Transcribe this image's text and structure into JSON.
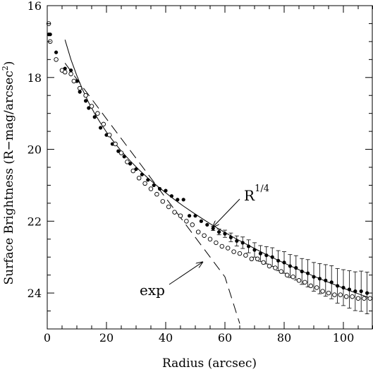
{
  "chart_data": {
    "type": "scatter",
    "xlabel": "Radius (arcsec)",
    "ylabel_parts": [
      "Surface Brightness (R−mag/arcsec",
      "2",
      ")"
    ],
    "xlim": [
      0,
      110
    ],
    "ylim": [
      25,
      16
    ],
    "y_inverted": true,
    "x_ticks": [
      0,
      20,
      40,
      60,
      80,
      100
    ],
    "y_ticks": [
      16,
      18,
      20,
      22,
      24
    ],
    "x_minor_step": 5,
    "y_minor_step": 0.5,
    "grid": false,
    "annotations": [
      {
        "text": "R",
        "sup": "1/4",
        "arrow_to": [
          55,
          22.2
        ]
      },
      {
        "text": "exp",
        "arrow_to": [
          51,
          23.1
        ]
      }
    ],
    "series": [
      {
        "marker": "filled-circle",
        "x": [
          0.5,
          1,
          3,
          5,
          6,
          8,
          10,
          11,
          13,
          14,
          16,
          18,
          20,
          22,
          24,
          26,
          28,
          30,
          32,
          34,
          36,
          38,
          40,
          42,
          44,
          46,
          48,
          50,
          52,
          54,
          56,
          58,
          60,
          62,
          64,
          66,
          68,
          70,
          72,
          74,
          76,
          78,
          80,
          82,
          84,
          86,
          88,
          90,
          92,
          94,
          96,
          98,
          100,
          102,
          104,
          106,
          108
        ],
        "y": [
          16.8,
          16.8,
          17.3,
          17.8,
          17.75,
          17.8,
          18.1,
          18.4,
          18.65,
          18.85,
          19.1,
          19.4,
          19.6,
          19.85,
          20.05,
          20.2,
          20.4,
          20.55,
          20.7,
          20.85,
          21.0,
          21.1,
          21.15,
          21.3,
          21.4,
          21.4,
          21.85,
          21.85,
          22.0,
          22.1,
          22.2,
          22.3,
          22.35,
          22.45,
          22.55,
          22.6,
          22.7,
          22.8,
          22.9,
          22.95,
          23.0,
          23.1,
          23.15,
          23.25,
          23.3,
          23.4,
          23.45,
          23.55,
          23.6,
          23.65,
          23.7,
          23.8,
          23.85,
          23.9,
          23.95,
          23.95,
          24.0
        ],
        "err": [
          0,
          0,
          0,
          0,
          0,
          0,
          0,
          0,
          0,
          0,
          0,
          0,
          0,
          0,
          0,
          0,
          0,
          0,
          0,
          0,
          0,
          0,
          0,
          0,
          0,
          0,
          0,
          0,
          0,
          0,
          0.06,
          0.08,
          0.1,
          0.12,
          0.14,
          0.16,
          0.18,
          0.2,
          0.22,
          0.24,
          0.26,
          0.28,
          0.3,
          0.32,
          0.34,
          0.36,
          0.38,
          0.4,
          0.42,
          0.44,
          0.46,
          0.48,
          0.5,
          0.52,
          0.54,
          0.56,
          0.58
        ]
      },
      {
        "marker": "open-circle",
        "x": [
          0.5,
          1,
          3,
          5,
          6,
          8,
          9,
          11,
          13,
          15,
          17,
          19,
          21,
          23,
          25,
          27,
          29,
          31,
          33,
          35,
          37,
          39,
          41,
          43,
          45,
          47,
          49,
          51,
          53,
          55,
          57,
          59,
          61,
          63,
          65,
          67,
          69,
          71,
          73,
          75,
          77,
          79,
          81,
          83,
          85,
          87,
          89,
          91,
          93,
          95,
          97,
          99,
          101,
          103,
          105,
          107,
          109
        ],
        "y": [
          16.5,
          17.0,
          17.5,
          17.8,
          17.85,
          17.9,
          18.1,
          18.3,
          18.5,
          18.8,
          19.0,
          19.3,
          19.6,
          19.85,
          20.1,
          20.35,
          20.6,
          20.8,
          20.95,
          21.1,
          21.25,
          21.45,
          21.6,
          21.75,
          21.85,
          22.0,
          22.1,
          22.3,
          22.4,
          22.5,
          22.6,
          22.7,
          22.75,
          22.85,
          22.9,
          22.95,
          23.05,
          23.05,
          23.15,
          23.25,
          23.3,
          23.4,
          23.5,
          23.55,
          23.65,
          23.7,
          23.8,
          23.85,
          23.95,
          24.0,
          24.05,
          24.05,
          24.1,
          24.1,
          24.15,
          24.15,
          24.15
        ]
      },
      {
        "style": "solid-line",
        "x": [
          6,
          8,
          10,
          12,
          14,
          16,
          18,
          20,
          22,
          25,
          28,
          31,
          34,
          37,
          40,
          43,
          46,
          49,
          52,
          55,
          58,
          61,
          64,
          67,
          70,
          74,
          78,
          82,
          86,
          90,
          94,
          98,
          102,
          106,
          109
        ],
        "y": [
          16.95,
          17.5,
          17.95,
          18.35,
          18.7,
          19.0,
          19.27,
          19.52,
          19.74,
          20.05,
          20.32,
          20.57,
          20.8,
          21.01,
          21.21,
          21.4,
          21.58,
          21.75,
          21.91,
          22.07,
          22.22,
          22.36,
          22.5,
          22.63,
          22.76,
          22.93,
          23.09,
          23.24,
          23.39,
          23.53,
          23.67,
          23.8,
          23.93,
          24.05,
          24.14
        ]
      },
      {
        "style": "dashed-line",
        "x": [
          6,
          10,
          15,
          20,
          25,
          30,
          35,
          40,
          45,
          50,
          55,
          60,
          65
        ],
        "y": [
          17.6,
          18.05,
          18.6,
          19.15,
          19.7,
          20.25,
          20.8,
          21.35,
          21.9,
          22.45,
          23.0,
          23.55,
          24.85
        ]
      }
    ]
  }
}
